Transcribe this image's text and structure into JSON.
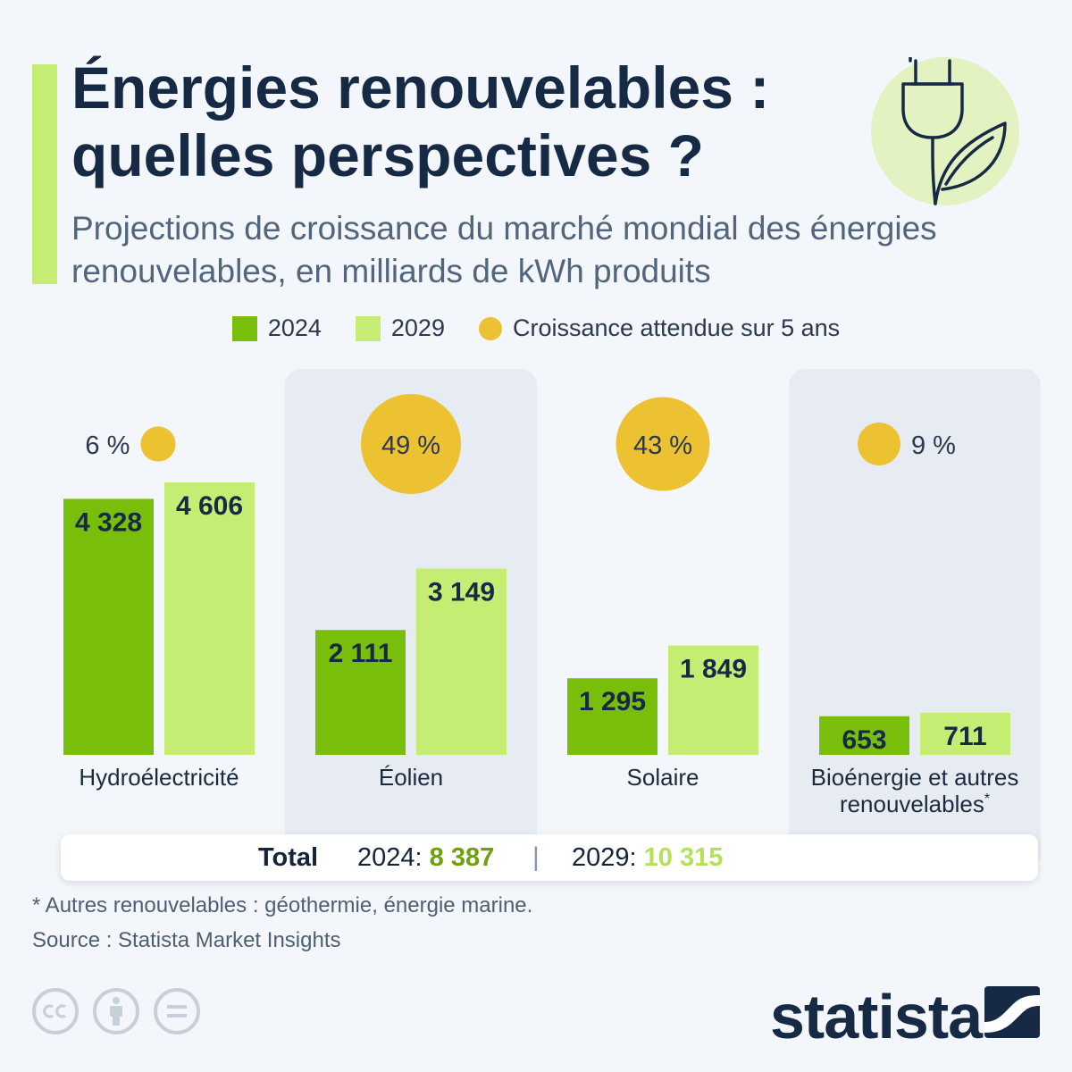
{
  "header": {
    "title_line1": "Énergies renouvelables :",
    "title_line2": "quelles perspectives ?",
    "subtitle_line1": "Projections de croissance du marché mondial des énergies",
    "subtitle_line2": "renouvelables, en milliards de kWh produits"
  },
  "legend": {
    "items": [
      {
        "label": "2024",
        "color": "#79be0a",
        "shape": "square"
      },
      {
        "label": "2029",
        "color": "#c5ec73",
        "shape": "square"
      },
      {
        "label": "Croissance attendue sur 5 ans",
        "color": "#ecc232",
        "shape": "circle"
      }
    ]
  },
  "chart_data": {
    "type": "bar",
    "categories": [
      {
        "line1": "Hydroélectricité",
        "line2": ""
      },
      {
        "line1": "Éolien",
        "line2": ""
      },
      {
        "line1": "Solaire",
        "line2": ""
      },
      {
        "line1": "Bioénergie et autres",
        "line2": "renouvelables",
        "footnote_mark": "*"
      }
    ],
    "series": [
      {
        "name": "2024",
        "color": "#79be0a",
        "values": [
          4328,
          2111,
          1295,
          653
        ],
        "labels": [
          "4 328",
          "2 111",
          "1 295",
          "653"
        ]
      },
      {
        "name": "2029",
        "color": "#c5ec73",
        "values": [
          4606,
          3149,
          1849,
          711
        ],
        "labels": [
          "4 606",
          "3 149",
          "1 849",
          "711"
        ]
      }
    ],
    "growth": {
      "name": "Croissance attendue sur 5 ans",
      "color": "#ecc232",
      "values": [
        6,
        49,
        43,
        9
      ],
      "labels": [
        "6 %",
        "49 %",
        "43 %",
        "9 %"
      ]
    },
    "title": "Énergies renouvelables : quelles perspectives ?",
    "xlabel": "",
    "ylabel": "",
    "ylim": [
      0,
      4606
    ],
    "grid": false,
    "legend_position": "top-center"
  },
  "total": {
    "label": "Total",
    "a_prefix": "2024:",
    "a_value": "8 387",
    "separator": "|",
    "b_prefix": "2029:",
    "b_value": "10 315"
  },
  "footer": {
    "footnote": "* Autres renouvelables : géothermie, énergie marine.",
    "source": "Source : Statista Market Insights",
    "brand": "statista"
  },
  "icons": {
    "hero": "plug-leaf-icon",
    "license": [
      "cc-icon",
      "attribution-icon",
      "no-derivatives-icon"
    ]
  }
}
